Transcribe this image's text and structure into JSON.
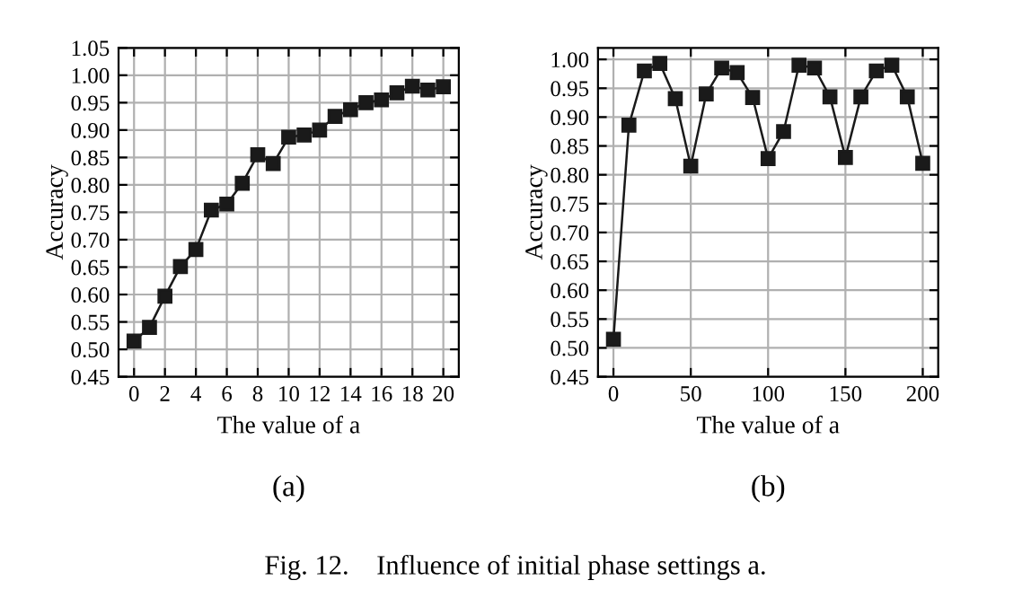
{
  "chart_data": [
    {
      "type": "line",
      "xlabel": "The value of a",
      "ylabel": "Accuracy",
      "x": [
        0,
        1,
        2,
        3,
        4,
        5,
        6,
        7,
        8,
        9,
        10,
        11,
        12,
        13,
        14,
        15,
        16,
        17,
        18,
        19,
        20
      ],
      "series": [
        {
          "color": "#1a1a1a",
          "values": [
            0.515,
            0.54,
            0.597,
            0.651,
            0.682,
            0.754,
            0.765,
            0.803,
            0.855,
            0.839,
            0.887,
            0.891,
            0.9,
            0.925,
            0.937,
            0.95,
            0.955,
            0.968,
            0.98,
            0.973,
            0.979
          ]
        }
      ],
      "xlim": [
        -1,
        21
      ],
      "xticks": [
        0,
        2,
        4,
        6,
        8,
        10,
        12,
        14,
        16,
        18,
        20
      ],
      "ylim": [
        0.45,
        1.05
      ],
      "yticks": [
        {
          "value": 0.45,
          "label": "0.45"
        },
        {
          "value": 0.5,
          "label": "0.50"
        },
        {
          "value": 0.55,
          "label": "0.55"
        },
        {
          "value": 0.6,
          "label": "0.60"
        },
        {
          "value": 0.65,
          "label": "0.65"
        },
        {
          "value": 0.7,
          "label": "0.70"
        },
        {
          "value": 0.75,
          "label": "0.75"
        },
        {
          "value": 0.8,
          "label": "0.80"
        },
        {
          "value": 0.85,
          "label": "0.85"
        },
        {
          "value": 0.9,
          "label": "0.90"
        },
        {
          "value": 0.95,
          "label": "0.95"
        },
        {
          "value": 1.0,
          "label": "1.00"
        },
        {
          "value": 1.05,
          "label": "1.05"
        }
      ],
      "grid": true,
      "marker": "square",
      "line_style": "solid",
      "legend": false,
      "annotations": [
        "(a)",
        "Fig. 12.    Influence of initial phase settings a."
      ]
    },
    {
      "type": "line",
      "xlabel": "The value of a",
      "ylabel": "Accuracy",
      "x": [
        0,
        10,
        20,
        30,
        40,
        50,
        60,
        70,
        80,
        90,
        100,
        110,
        120,
        130,
        140,
        150,
        160,
        170,
        180,
        190,
        200
      ],
      "series": [
        {
          "color": "#1a1a1a",
          "values": [
            0.515,
            0.886,
            0.98,
            0.993,
            0.932,
            0.815,
            0.94,
            0.985,
            0.977,
            0.934,
            0.828,
            0.875,
            0.99,
            0.985,
            0.935,
            0.83,
            0.935,
            0.98,
            0.99,
            0.935,
            0.82
          ]
        }
      ],
      "xlim": [
        -10,
        210
      ],
      "xticks": [
        0,
        50,
        100,
        150,
        200
      ],
      "ylim": [
        0.45,
        1.02
      ],
      "yticks": [
        {
          "value": 0.45,
          "label": "0.45"
        },
        {
          "value": 0.5,
          "label": "0.50"
        },
        {
          "value": 0.55,
          "label": "0.55"
        },
        {
          "value": 0.6,
          "label": "0.60"
        },
        {
          "value": 0.65,
          "label": "0.65"
        },
        {
          "value": 0.7,
          "label": "0.70"
        },
        {
          "value": 0.75,
          "label": "0.75"
        },
        {
          "value": 0.8,
          "label": "0.80"
        },
        {
          "value": 0.85,
          "label": "0.85"
        },
        {
          "value": 0.9,
          "label": "0.90"
        },
        {
          "value": 0.95,
          "label": "0.95"
        },
        {
          "value": 1.0,
          "label": "1.00"
        }
      ],
      "grid": true,
      "marker": "square",
      "line_style": "solid",
      "legend": false,
      "annotations": [
        "(b)"
      ]
    }
  ]
}
